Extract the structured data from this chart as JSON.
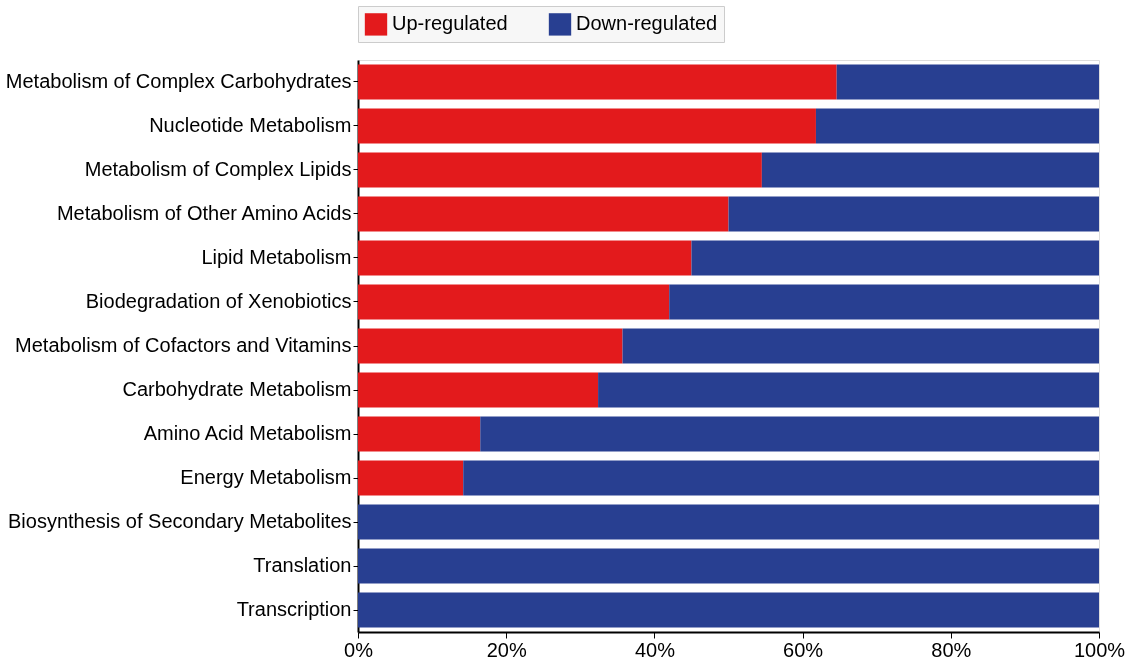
{
  "chart_data": {
    "type": "bar",
    "orientation": "horizontal",
    "stacked": true,
    "categories": [
      "Metabolism of Complex Carbohydrates",
      "Nucleotide Metabolism",
      "Metabolism of Complex Lipids",
      "Metabolism of Other Amino Acids",
      "Lipid Metabolism",
      "Biodegradation of Xenobiotics",
      "Metabolism of Cofactors and Vitamins",
      "Carbohydrate Metabolism",
      "Amino Acid Metabolism",
      "Energy Metabolism",
      "Biosynthesis of Secondary Metabolites",
      "Translation",
      "Transcription"
    ],
    "series": [
      {
        "name": "Up-regulated",
        "color": "#e31a1c",
        "values": [
          64.6,
          61.8,
          54.5,
          50,
          45,
          42,
          35.7,
          32.4,
          16.5,
          14.2,
          0,
          0,
          0
        ]
      },
      {
        "name": "Down-regulated",
        "color": "#283f91",
        "values": [
          35.4,
          38.2,
          45.5,
          50,
          55,
          58,
          64.3,
          67.6,
          83.5,
          85.8,
          100,
          100,
          100
        ]
      }
    ],
    "xlim": [
      0,
      100
    ],
    "xticks": [
      {
        "value": 0,
        "label": "0%"
      },
      {
        "value": 20,
        "label": "20%"
      },
      {
        "value": 40,
        "label": "40%"
      },
      {
        "value": 60,
        "label": "60%"
      },
      {
        "value": 80,
        "label": "80%"
      },
      {
        "value": 100,
        "label": "100%"
      }
    ],
    "grid": false,
    "legend": "top"
  }
}
